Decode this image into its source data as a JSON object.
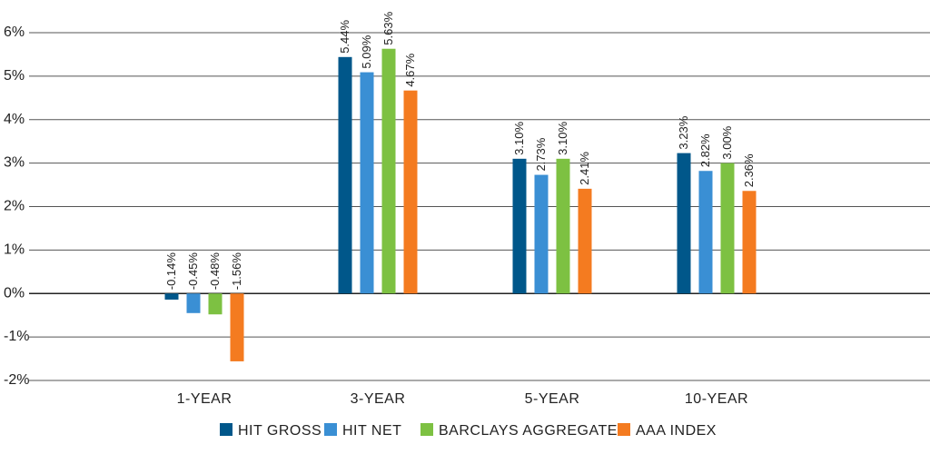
{
  "chart_data": {
    "type": "bar",
    "title": "",
    "xlabel": "",
    "ylabel": "",
    "ylim": [
      -2,
      6
    ],
    "yticks": [
      -2,
      -1,
      0,
      1,
      2,
      3,
      4,
      5,
      6
    ],
    "ytick_labels": [
      "-2%",
      "-1%",
      "0%",
      "1%",
      "2%",
      "3%",
      "4%",
      "5%",
      "6%"
    ],
    "grid": true,
    "legend_position": "bottom",
    "categories": [
      "1-YEAR",
      "3-YEAR",
      "5-YEAR",
      "10-YEAR"
    ],
    "series": [
      {
        "name": "HIT GROSS",
        "color": "#00578a",
        "values": [
          -0.14,
          5.44,
          3.1,
          3.23
        ],
        "labels": [
          "-0.14%",
          "5.44%",
          "3.10%",
          "3.23%"
        ]
      },
      {
        "name": "HIT NET",
        "color": "#3a8fd4",
        "values": [
          -0.45,
          5.09,
          2.73,
          2.82
        ],
        "labels": [
          "-0.45%",
          "5.09%",
          "2.73%",
          "2.82%"
        ]
      },
      {
        "name": "BARCLAYS AGGREGATE",
        "color": "#7dc142",
        "values": [
          -0.48,
          5.63,
          3.1,
          3.0
        ],
        "labels": [
          "-0.48%",
          "5.63%",
          "3.10%",
          "3.00%"
        ]
      },
      {
        "name": "AAA INDEX",
        "color": "#f47b20",
        "values": [
          -1.56,
          4.67,
          2.41,
          2.36
        ],
        "labels": [
          "-1.56%",
          "4.67%",
          "2.41%",
          "2.36%"
        ]
      }
    ]
  }
}
